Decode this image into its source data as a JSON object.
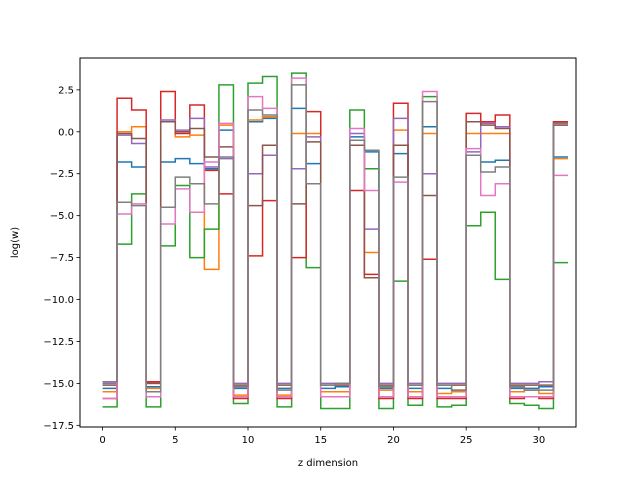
{
  "chart_data": {
    "type": "line",
    "step": "post",
    "xlabel": "z dimension",
    "ylabel": "log(w)",
    "xlim": [
      -1.55,
      32.55
    ],
    "ylim": [
      -17.6,
      4.4
    ],
    "xticks": [
      0,
      5,
      10,
      15,
      20,
      25,
      30
    ],
    "yticks": [
      2.5,
      0.0,
      -2.5,
      -5.0,
      -7.5,
      -10.0,
      -12.5,
      -15.0,
      -17.5
    ],
    "ytick_labels": [
      "2.5",
      "0.0",
      "−2.5",
      "−5.0",
      "−7.5",
      "−10.0",
      "−12.5",
      "−15.0",
      "−17.5"
    ],
    "x": [
      0,
      1,
      2,
      3,
      4,
      5,
      6,
      7,
      8,
      9,
      10,
      11,
      12,
      13,
      14,
      15,
      16,
      17,
      18,
      19,
      20,
      21,
      22,
      23,
      24,
      25,
      26,
      27,
      28,
      29,
      30,
      31
    ],
    "grid": false,
    "series": [
      {
        "color": "#1f77b4",
        "values": [
          -15.3,
          -1.8,
          -2.1,
          -15.2,
          -1.8,
          -1.6,
          -1.9,
          -2.2,
          0.1,
          -15.3,
          0.6,
          0.8,
          -15.3,
          1.4,
          -1.9,
          -15.3,
          -15.2,
          -0.3,
          -1.2,
          -15.3,
          -1.3,
          -15.3,
          0.3,
          -15.3,
          -15.4,
          -1.4,
          -1.8,
          -1.7,
          -15.3,
          -15.3,
          -15.2,
          -1.5
        ]
      },
      {
        "color": "#ff7f0e",
        "values": [
          -15.5,
          0.0,
          0.3,
          -15.3,
          0.6,
          -0.3,
          -0.2,
          -8.2,
          0.4,
          -15.7,
          0.7,
          0.9,
          -15.7,
          -0.1,
          -0.1,
          -15.5,
          -15.5,
          -0.5,
          -7.2,
          -15.4,
          0.1,
          -15.5,
          -0.1,
          -15.6,
          -15.5,
          -0.1,
          -0.1,
          -0.1,
          -15.5,
          -15.4,
          -15.6,
          -1.6
        ]
      },
      {
        "color": "#2ca02c",
        "values": [
          -16.4,
          -6.7,
          -3.7,
          -16.4,
          -6.8,
          -3.2,
          -7.5,
          -5.8,
          2.8,
          -16.2,
          2.9,
          3.3,
          -16.4,
          3.5,
          -8.1,
          -16.5,
          -16.5,
          1.3,
          -2.2,
          -16.5,
          -8.9,
          -16.3,
          2.1,
          -16.4,
          -16.3,
          -5.6,
          -4.8,
          -8.8,
          -16.2,
          -16.3,
          -16.5,
          -7.8
        ]
      },
      {
        "color": "#d62728",
        "values": [
          -15.9,
          2.0,
          1.3,
          -14.9,
          2.4,
          -0.1,
          1.6,
          -2.3,
          -3.7,
          -15.9,
          -7.4,
          -4.1,
          -15.9,
          -7.5,
          1.2,
          -15.8,
          -15.8,
          -3.5,
          -8.5,
          -15.9,
          1.7,
          -15.9,
          -7.6,
          -15.9,
          -15.9,
          1.1,
          0.6,
          1.0,
          -15.9,
          -15.8,
          -15.9,
          0.6
        ]
      },
      {
        "color": "#9467bd",
        "values": [
          -15.0,
          -0.2,
          -0.7,
          -15.0,
          0.7,
          0.1,
          0.8,
          -2.1,
          -1.6,
          -15.0,
          -2.5,
          -1.4,
          -15.0,
          -2.2,
          -0.3,
          -15.0,
          -15.0,
          -0.1,
          -5.8,
          -15.0,
          0.8,
          -15.0,
          -2.5,
          -15.0,
          -15.0,
          -1.2,
          0.5,
          0.3,
          -15.0,
          -15.0,
          -14.9,
          0.5
        ]
      },
      {
        "color": "#8c564b",
        "values": [
          -15.1,
          -0.1,
          -0.4,
          -15.0,
          0.6,
          0.0,
          0.2,
          -1.5,
          -0.9,
          -15.1,
          -4.4,
          -0.8,
          -15.1,
          -4.3,
          -0.6,
          -15.1,
          -15.1,
          -0.8,
          -8.7,
          -15.1,
          -0.8,
          -15.1,
          -3.8,
          -15.1,
          -15.1,
          0.6,
          0.4,
          0.2,
          -15.1,
          -15.1,
          -15.1,
          0.4
        ]
      },
      {
        "color": "#e377c2",
        "values": [
          -15.9,
          -4.9,
          -4.3,
          -15.8,
          -5.5,
          -3.4,
          -4.8,
          -1.8,
          0.5,
          -15.8,
          2.1,
          1.4,
          -15.8,
          3.2,
          -3.1,
          -15.8,
          -15.8,
          0.2,
          -3.5,
          -15.8,
          -3.0,
          -15.8,
          2.4,
          -15.8,
          -15.8,
          -1.0,
          -3.8,
          -3.1,
          -15.8,
          -15.8,
          -15.8,
          -2.6
        ]
      },
      {
        "color": "#7f7f7f",
        "values": [
          -14.9,
          -4.2,
          -4.4,
          -15.5,
          -4.5,
          -2.7,
          -3.1,
          -4.3,
          -1.5,
          -15.2,
          1.3,
          1.0,
          -15.4,
          2.8,
          -3.1,
          -15.1,
          -15.0,
          -0.5,
          -1.1,
          -15.2,
          -2.7,
          -15.1,
          1.8,
          -15.1,
          -15.4,
          -1.4,
          -2.4,
          -2.1,
          -15.2,
          -15.4,
          -15.4,
          0.5
        ]
      }
    ]
  }
}
